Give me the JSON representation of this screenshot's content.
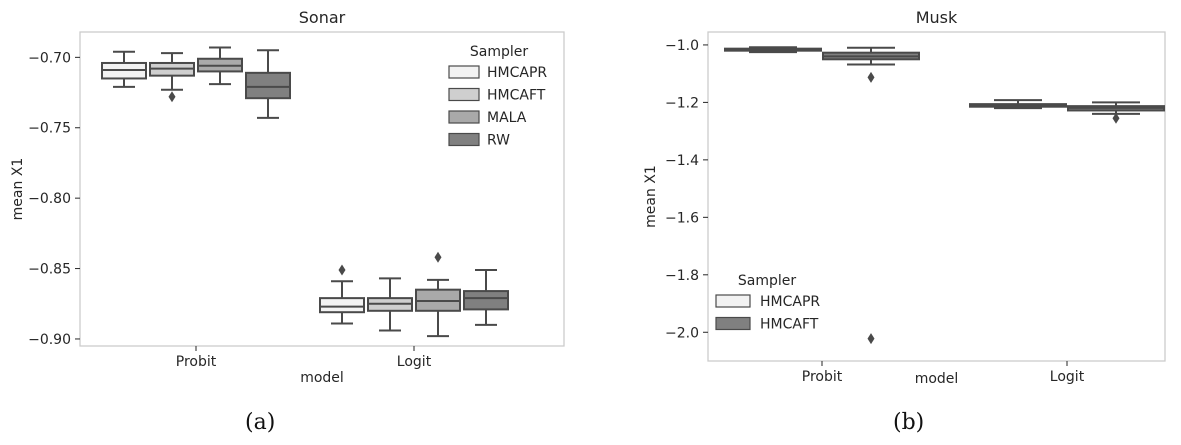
{
  "colors": {
    "HMCAPR": "#f2f2f2",
    "HMCAFT": "#cfcfcf",
    "MALA": "#a9a9a9",
    "RW": "#808080",
    "HMCAFT_musk": "#808080",
    "line": "#4a4a4a",
    "frame": "#cccccc",
    "text": "#262626"
  },
  "captions": {
    "a": "(a)",
    "b": "(b)"
  },
  "chart_data": [
    {
      "type": "box",
      "title": "Sonar",
      "xlabel": "model",
      "ylabel": "mean X1",
      "categories": [
        "Probit",
        "Logit"
      ],
      "ylim": [
        -0.905,
        -0.682
      ],
      "yticks": [
        -0.7,
        -0.75,
        -0.8,
        -0.85,
        -0.9
      ],
      "ytick_labels": [
        "−0.70",
        "−0.75",
        "−0.80",
        "−0.85",
        "−0.90"
      ],
      "grid": false,
      "legend": {
        "title": "Sampler",
        "placement": "top-right",
        "entries": [
          "HMCAPR",
          "HMCAFT",
          "MALA",
          "RW"
        ]
      },
      "series": [
        {
          "name": "HMCAPR",
          "boxes": [
            {
              "whislo": -0.721,
              "q1": -0.715,
              "med": -0.709,
              "q3": -0.704,
              "whishi": -0.696,
              "fliers": []
            },
            {
              "whislo": -0.889,
              "q1": -0.881,
              "med": -0.877,
              "q3": -0.871,
              "whishi": -0.859,
              "fliers": [
                -0.851
              ]
            }
          ]
        },
        {
          "name": "HMCAFT",
          "boxes": [
            {
              "whislo": -0.723,
              "q1": -0.713,
              "med": -0.708,
              "q3": -0.704,
              "whishi": -0.697,
              "fliers": [
                -0.728
              ]
            },
            {
              "whislo": -0.894,
              "q1": -0.88,
              "med": -0.875,
              "q3": -0.871,
              "whishi": -0.857,
              "fliers": []
            }
          ]
        },
        {
          "name": "MALA",
          "boxes": [
            {
              "whislo": -0.719,
              "q1": -0.71,
              "med": -0.706,
              "q3": -0.701,
              "whishi": -0.693,
              "fliers": []
            },
            {
              "whislo": -0.898,
              "q1": -0.88,
              "med": -0.873,
              "q3": -0.865,
              "whishi": -0.858,
              "fliers": [
                -0.842
              ]
            }
          ]
        },
        {
          "name": "RW",
          "boxes": [
            {
              "whislo": -0.743,
              "q1": -0.729,
              "med": -0.721,
              "q3": -0.711,
              "whishi": -0.695,
              "fliers": []
            },
            {
              "whislo": -0.89,
              "q1": -0.879,
              "med": -0.871,
              "q3": -0.866,
              "whishi": -0.851,
              "fliers": []
            }
          ]
        }
      ]
    },
    {
      "type": "box",
      "title": "Musk",
      "xlabel": "model",
      "ylabel": "mean X1",
      "categories": [
        "Probit",
        "Logit"
      ],
      "ylim": [
        -2.1,
        -0.955
      ],
      "yticks": [
        -1.0,
        -1.2,
        -1.4,
        -1.6,
        -1.8,
        -2.0
      ],
      "ytick_labels": [
        "−1.0",
        "−1.2",
        "−1.4",
        "−1.6",
        "−1.8",
        "−2.0"
      ],
      "grid": false,
      "legend": {
        "title": "Sampler",
        "placement": "bottom-left",
        "entries": [
          "HMCAPR",
          "HMCAFT"
        ]
      },
      "series": [
        {
          "name": "HMCAPR",
          "boxes": [
            {
              "whislo": -1.025,
              "q1": -1.02,
              "med": -1.017,
              "q3": -1.013,
              "whishi": -1.008,
              "fliers": []
            },
            {
              "whislo": -1.22,
              "q1": -1.215,
              "med": -1.21,
              "q3": -1.206,
              "whishi": -1.192,
              "fliers": []
            }
          ]
        },
        {
          "name": "HMCAFT",
          "boxes": [
            {
              "whislo": -1.068,
              "q1": -1.05,
              "med": -1.04,
              "q3": -1.027,
              "whishi": -1.01,
              "fliers": [
                -1.113,
                -2.022
              ]
            },
            {
              "whislo": -1.24,
              "q1": -1.228,
              "med": -1.219,
              "q3": -1.213,
              "whishi": -1.2,
              "fliers": [
                -1.255
              ]
            }
          ]
        }
      ]
    }
  ]
}
